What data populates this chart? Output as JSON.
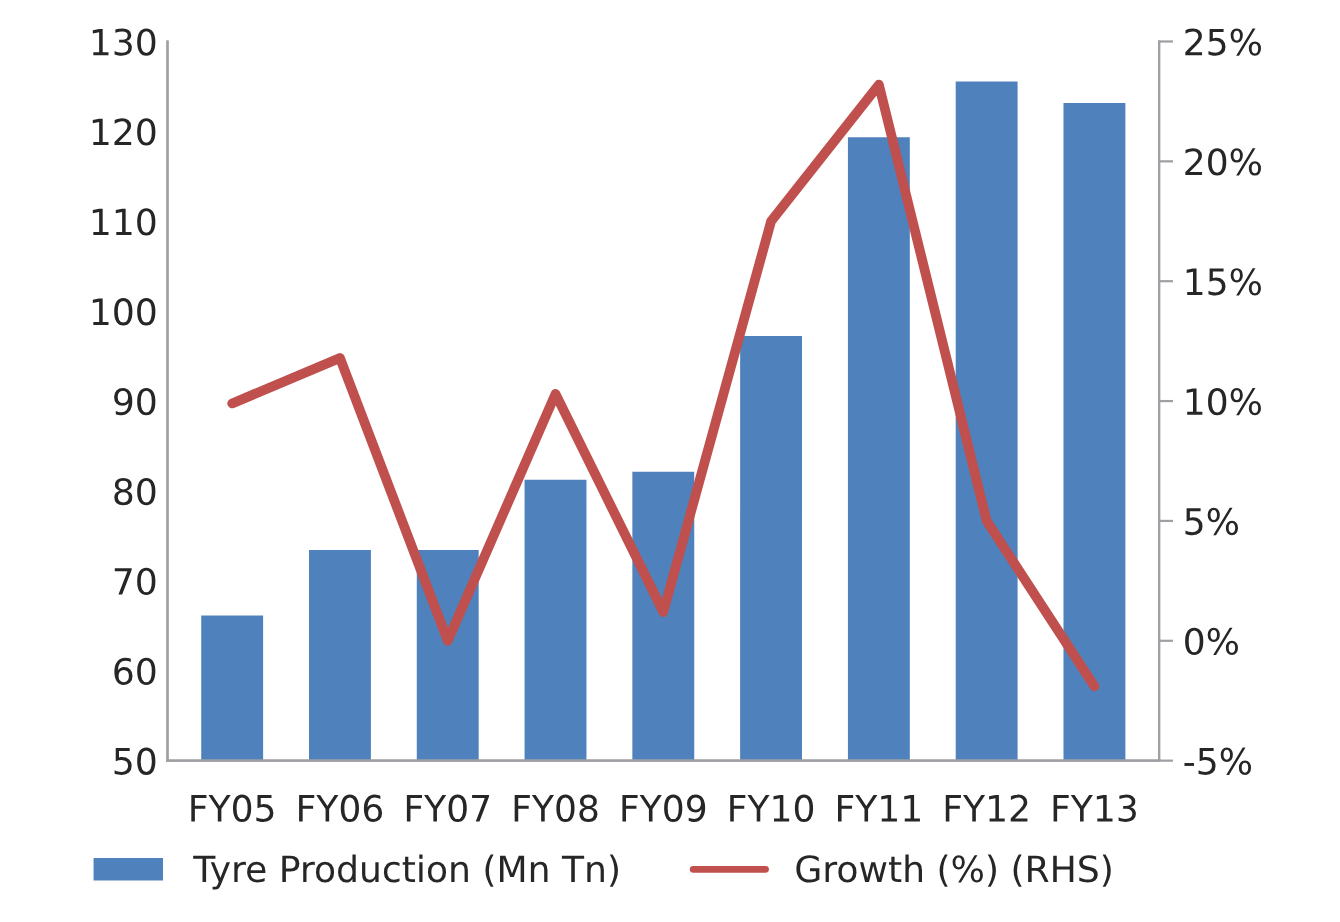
{
  "chart_data": {
    "type": "bar",
    "categories": [
      "FY05",
      "FY06",
      "FY07",
      "FY08",
      "FY09",
      "FY10",
      "FY11",
      "FY12",
      "FY13"
    ],
    "series": [
      {
        "name": "Tyre Production (Mn Tn)",
        "color": "#4f81bd",
        "values": [
          66.3,
          73.6,
          73.6,
          81.4,
          82.3,
          97.4,
          119.5,
          125.7,
          123.3
        ]
      },
      {
        "name": "Growth (%) (RHS)",
        "type": "line",
        "axis": "y2",
        "color": "#c0504d",
        "values": [
          9.9,
          11.8,
          0.0,
          10.3,
          1.2,
          17.5,
          23.2,
          5.0,
          -1.9
        ]
      }
    ],
    "ylim": [
      50,
      130
    ],
    "yticks": [
      50,
      60,
      70,
      80,
      90,
      100,
      110,
      120,
      130
    ],
    "y2lim": [
      -5,
      25
    ],
    "y2ticks": [
      {
        "value": -5,
        "label": "-5%"
      },
      {
        "value": 0,
        "label": "0%"
      },
      {
        "value": 5,
        "label": "5%"
      },
      {
        "value": 10,
        "label": "10%"
      },
      {
        "value": 15,
        "label": "15%"
      },
      {
        "value": 20,
        "label": "20%"
      },
      {
        "value": 25,
        "label": "25%"
      }
    ],
    "legend": "bottom",
    "grid": false
  }
}
